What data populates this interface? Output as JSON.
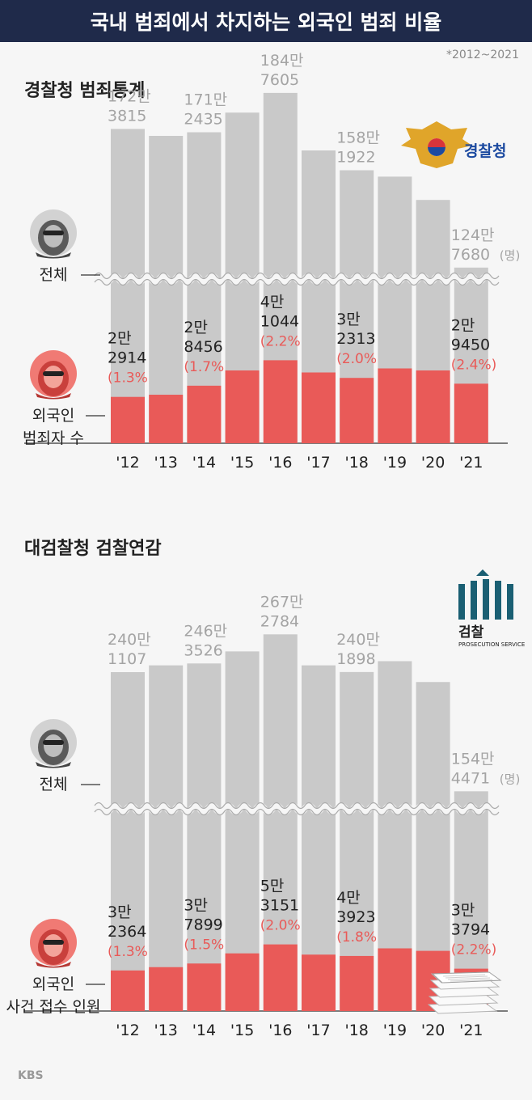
{
  "title": "국내 범죄에서 차지하는 외국인 범죄 비율",
  "period_note": "*2012~2021",
  "brand": "KBS",
  "chart_data": [
    {
      "type": "bar",
      "title": "경찰청 범죄통계",
      "logo_text": "경찰청",
      "label_total": "전체",
      "label_foreign": [
        "외국인",
        "범죄자 수"
      ],
      "unit": "(명)",
      "categories": [
        "'12",
        "'13",
        "'14",
        "'15",
        "'16",
        "'17",
        "'18",
        "'19",
        "'20",
        "'21"
      ],
      "series": [
        {
          "name": "전체",
          "values": [
            1723815,
            1700000,
            1712435,
            1780000,
            1847605,
            1650000,
            1581922,
            1560000,
            1480000,
            1247680
          ]
        },
        {
          "name": "외국인",
          "values": [
            22914,
            24000,
            28456,
            36000,
            41044,
            35000,
            32313,
            37000,
            36000,
            29450
          ]
        }
      ],
      "total_labels": [
        [
          "172만",
          "3815"
        ],
        null,
        [
          "171만",
          "2435"
        ],
        null,
        [
          "184만",
          "7605"
        ],
        null,
        [
          "158만",
          "1922"
        ],
        null,
        null,
        [
          "124만",
          "7680"
        ]
      ],
      "foreign_labels": [
        [
          "2만",
          "2914",
          "(1.3%)"
        ],
        null,
        [
          "2만",
          "8456",
          "(1.7%)"
        ],
        null,
        [
          "4만",
          "1044",
          "(2.2%)"
        ],
        null,
        [
          "3만",
          "2313",
          "(2.0%)"
        ],
        null,
        null,
        [
          "2만",
          "9450",
          "(2.4%)"
        ]
      ]
    },
    {
      "type": "bar",
      "title": "대검찰청 검찰연감",
      "logo_text": "검찰",
      "logo_subtext": "PROSECUTION SERVICE",
      "label_total": "전체",
      "label_foreign": [
        "외국인",
        "사건 접수 인원"
      ],
      "unit": "(명)",
      "categories": [
        "'12",
        "'13",
        "'14",
        "'15",
        "'16",
        "'17",
        "'18",
        "'19",
        "'20",
        "'21"
      ],
      "series": [
        {
          "name": "전체",
          "values": [
            2401107,
            2450000,
            2463526,
            2550000,
            2672784,
            2450000,
            2401898,
            2480000,
            2330000,
            1544471
          ]
        },
        {
          "name": "외국인",
          "values": [
            32364,
            35000,
            37899,
            46000,
            53151,
            45000,
            43923,
            50000,
            48000,
            33794
          ]
        }
      ],
      "total_labels": [
        [
          "240만",
          "1107"
        ],
        null,
        [
          "246만",
          "3526"
        ],
        null,
        [
          "267만",
          "2784"
        ],
        null,
        [
          "240만",
          "1898"
        ],
        null,
        null,
        [
          "154만",
          "4471"
        ]
      ],
      "foreign_labels": [
        [
          "3만",
          "2364",
          "(1.3%)"
        ],
        null,
        [
          "3만",
          "7899",
          "(1.5%)"
        ],
        null,
        [
          "5만",
          "3151",
          "(2.0%)"
        ],
        null,
        [
          "4만",
          "3923",
          "(1.8%)"
        ],
        null,
        null,
        [
          "3만",
          "3794",
          "(2.2%)"
        ]
      ]
    }
  ]
}
